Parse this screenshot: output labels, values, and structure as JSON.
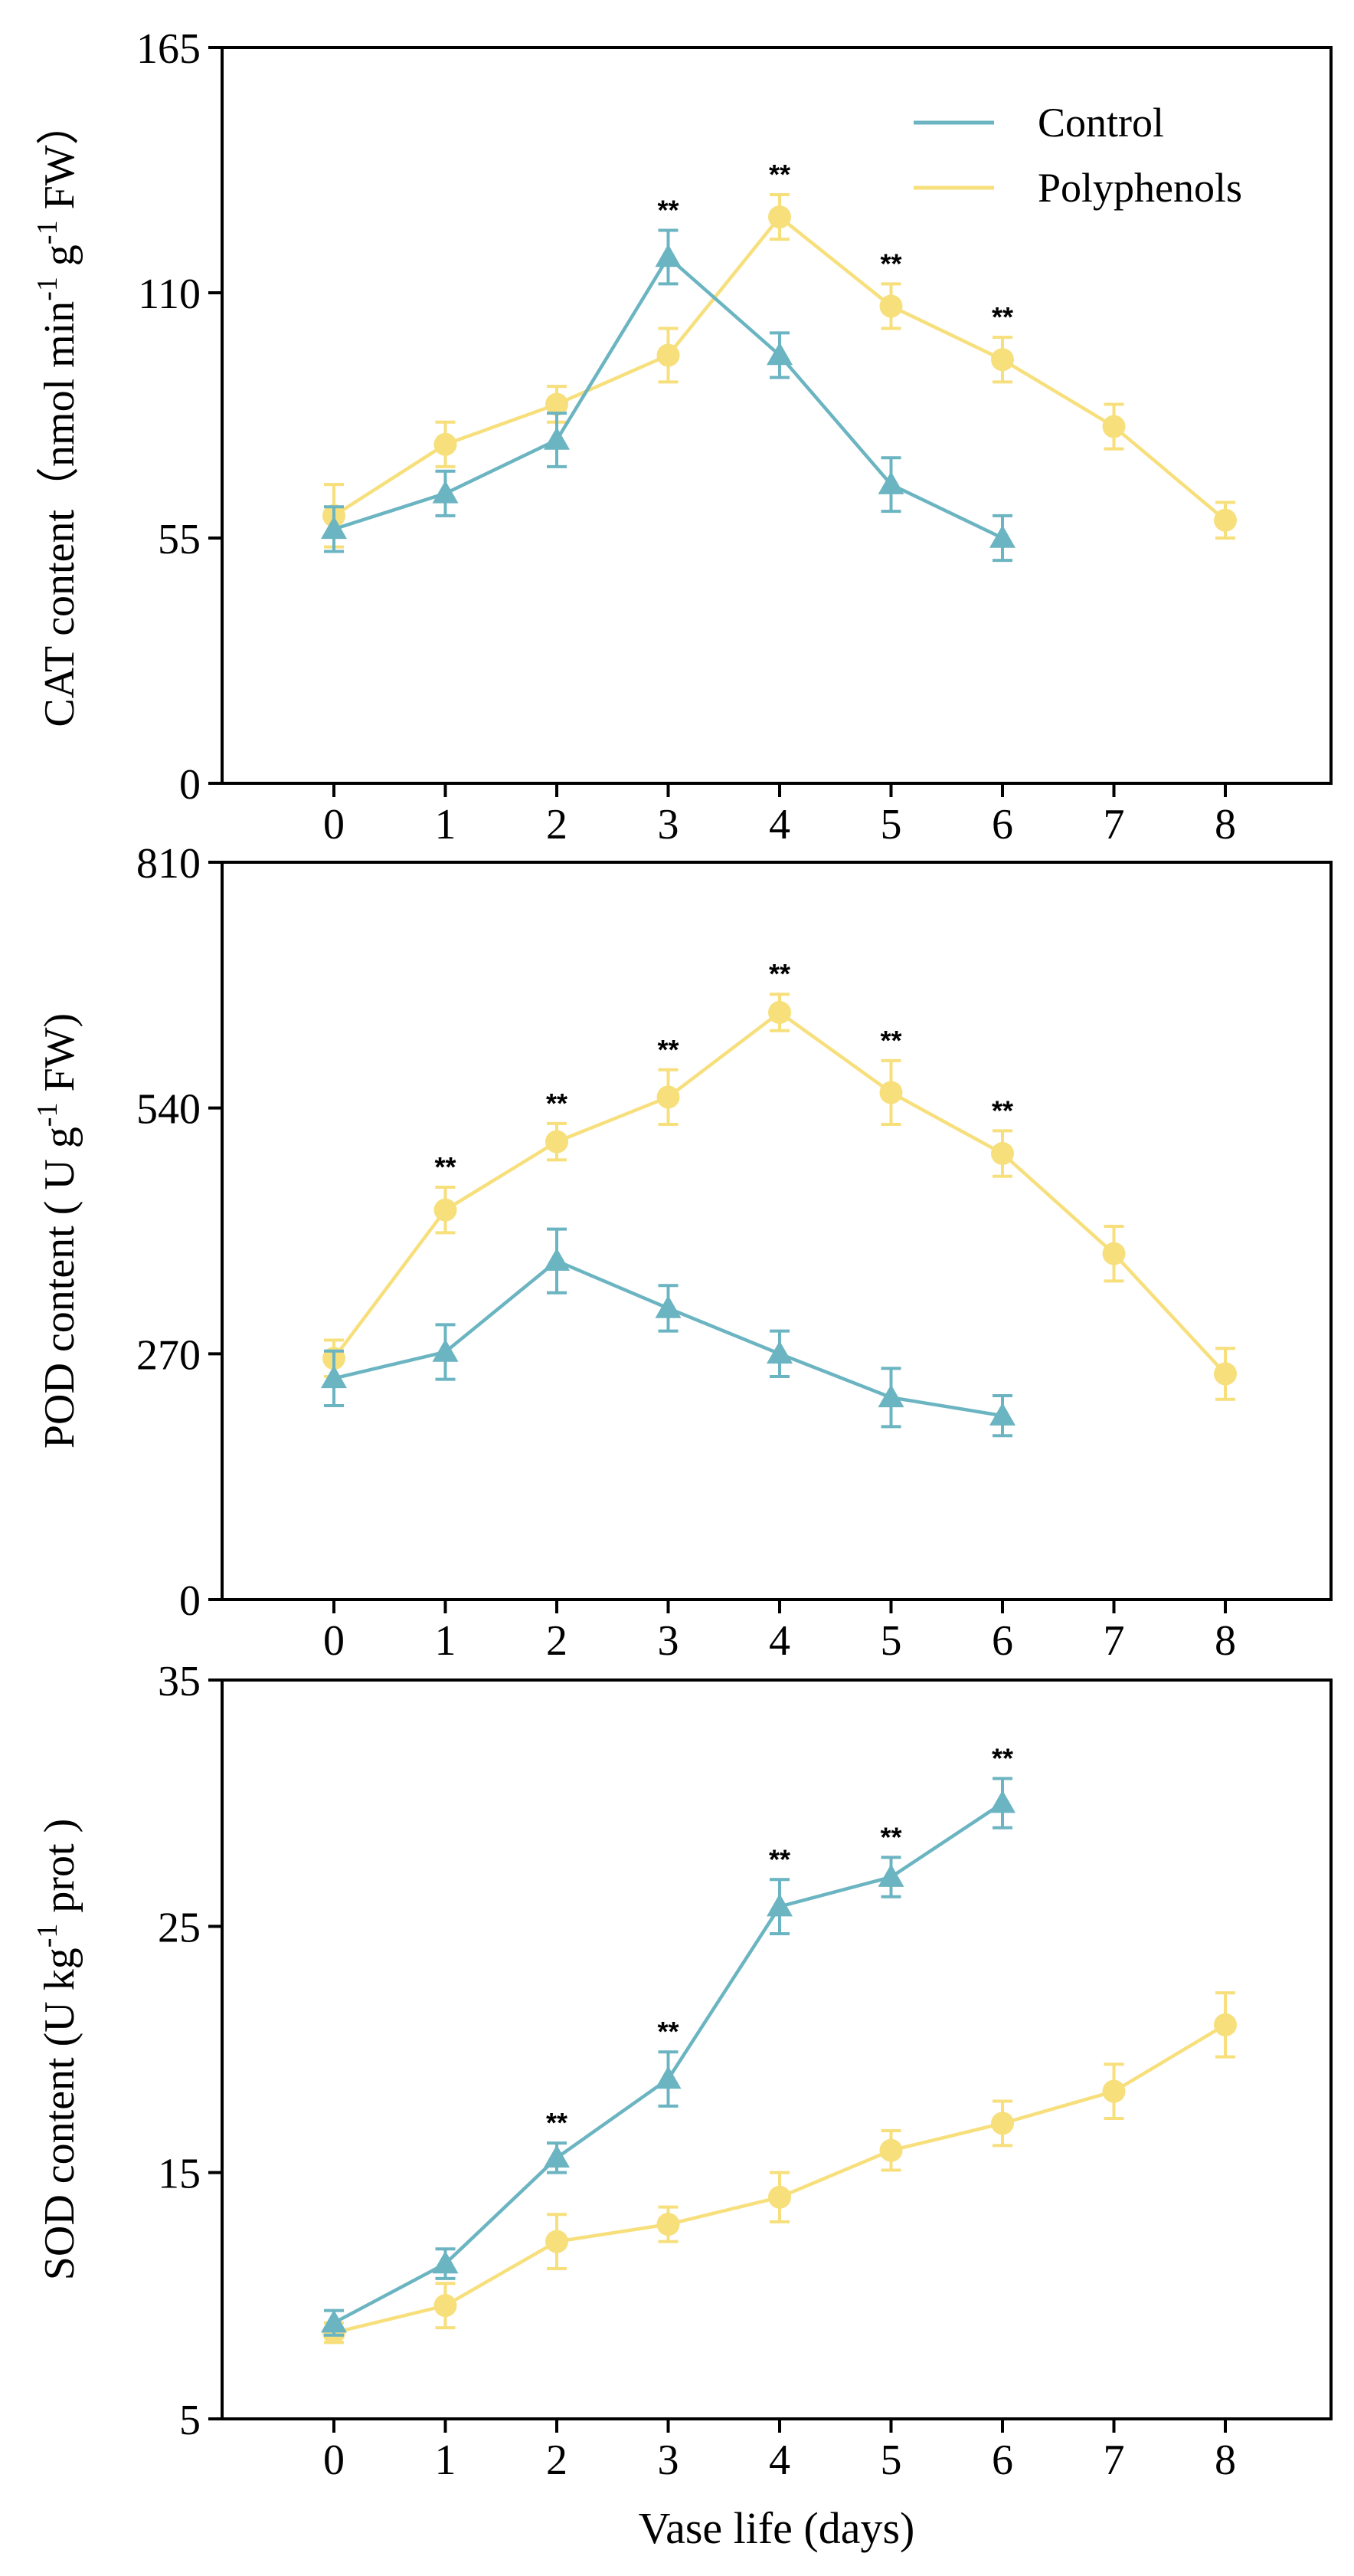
{
  "figure": {
    "legend": {
      "entries": [
        {
          "key": "control",
          "label": "Control"
        },
        {
          "key": "polyphenols",
          "label": "Polyphenols"
        }
      ]
    },
    "xlabel": "Vase life (days)"
  },
  "colors": {
    "control": "#6bb4c1",
    "polyphenols": "#f7df7c",
    "axis": "#000000"
  },
  "markers": {
    "control": "triangle",
    "polyphenols": "circle"
  },
  "significance_marker": "**",
  "chart_data": [
    {
      "type": "line",
      "id": "cat",
      "title": "",
      "ylabel_parts": {
        "main": "CAT content（nmol min",
        "sup1": "-1",
        "mid": " g",
        "sup2": "-1",
        "end": " FW）"
      },
      "ylabel": "CAT content（nmol min-1 g-1 FW）",
      "xlabel": "",
      "x": [
        0,
        1,
        2,
        3,
        4,
        5,
        6,
        7,
        8
      ],
      "ylim": [
        0,
        165
      ],
      "yticks": [
        0,
        55,
        110,
        165
      ],
      "series": [
        {
          "name": "Control",
          "x": [
            0,
            1,
            2,
            3,
            4,
            5,
            6
          ],
          "values": [
            57,
            65,
            77,
            118,
            96,
            67,
            55
          ],
          "errors": [
            5,
            5,
            6,
            6,
            5,
            6,
            5
          ]
        },
        {
          "name": "Polyphenols",
          "x": [
            0,
            1,
            2,
            3,
            4,
            5,
            6,
            7,
            8
          ],
          "values": [
            60,
            76,
            85,
            96,
            127,
            107,
            95,
            80,
            59
          ],
          "errors": [
            7,
            5,
            4,
            6,
            5,
            5,
            5,
            5,
            4
          ]
        }
      ],
      "significance": [
        3,
        4,
        5,
        6
      ]
    },
    {
      "type": "line",
      "id": "pod",
      "title": "",
      "ylabel_parts": {
        "main": "POD content ( U g",
        "sup1": "-1",
        "mid": " FW)",
        "sup2": "",
        "end": ""
      },
      "ylabel": "POD content ( U g-1 FW)",
      "xlabel": "",
      "x": [
        0,
        1,
        2,
        3,
        4,
        5,
        6,
        7,
        8
      ],
      "ylim": [
        0,
        810
      ],
      "yticks": [
        0,
        270,
        540,
        810
      ],
      "series": [
        {
          "name": "Control",
          "x": [
            0,
            1,
            2,
            3,
            4,
            5,
            6
          ],
          "values": [
            243,
            272,
            372,
            320,
            270,
            222,
            202
          ],
          "errors": [
            30,
            30,
            35,
            25,
            25,
            32,
            22
          ]
        },
        {
          "name": "Polyphenols",
          "x": [
            0,
            1,
            2,
            3,
            4,
            5,
            6,
            7,
            8
          ],
          "values": [
            265,
            428,
            503,
            552,
            645,
            557,
            490,
            380,
            248
          ],
          "errors": [
            20,
            25,
            20,
            30,
            20,
            35,
            25,
            30,
            28
          ]
        }
      ],
      "significance": [
        1,
        2,
        3,
        4,
        5,
        6
      ]
    },
    {
      "type": "line",
      "id": "sod",
      "title": "",
      "ylabel_parts": {
        "main": "SOD content (U kg",
        "sup1": "-1",
        "mid": " prot )",
        "sup2": "",
        "end": ""
      },
      "ylabel": "SOD content (U kg-1 prot )",
      "xlabel": "Vase life (days)",
      "x": [
        0,
        1,
        2,
        3,
        4,
        5,
        6,
        7,
        8
      ],
      "ylim": [
        5,
        35
      ],
      "yticks": [
        5,
        15,
        25,
        35
      ],
      "series": [
        {
          "name": "Control",
          "x": [
            0,
            1,
            2,
            3,
            4,
            5,
            6
          ],
          "values": [
            8.9,
            11.3,
            15.6,
            18.8,
            25.8,
            27.0,
            30.0
          ],
          "errors": [
            0.5,
            0.6,
            0.6,
            1.1,
            1.1,
            0.8,
            1.0
          ]
        },
        {
          "name": "Polyphenols",
          "x": [
            0,
            1,
            2,
            3,
            4,
            5,
            6,
            7,
            8
          ],
          "values": [
            8.5,
            9.6,
            12.2,
            12.9,
            14.0,
            15.9,
            17.0,
            18.3,
            21.0
          ],
          "errors": [
            0.4,
            0.9,
            1.1,
            0.7,
            1.0,
            0.8,
            0.9,
            1.1,
            1.3
          ]
        }
      ],
      "significance": [
        2,
        3,
        4,
        5,
        6
      ]
    }
  ]
}
